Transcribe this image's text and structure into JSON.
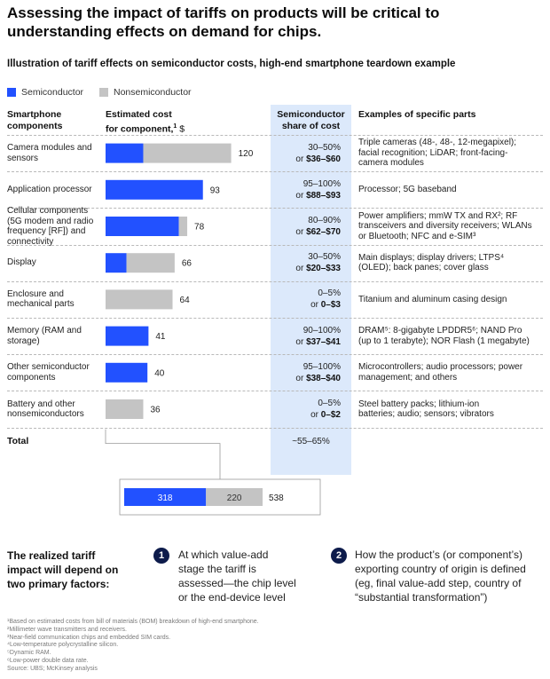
{
  "headline": "Assessing the impact of tariffs on products will be critical to understanding effects on demand for chips.",
  "subtitle": "Illustration of tariff effects on semiconductor costs, high-end smartphone teardown example",
  "colors": {
    "semiconductor": "#2251ff",
    "nonsemiconductor": "#c4c4c4",
    "share_bg": "#dce9fb",
    "badge": "#0d1b4b"
  },
  "legend": {
    "semiconductor": "Semiconductor",
    "nonsemiconductor": "Nonsemiconductor"
  },
  "columns": {
    "components": [
      "Smartphone",
      "components"
    ],
    "cost_prefix": "Estimated cost",
    "cost_line2": "for component,",
    "cost_sup": "1",
    "cost_unit": " $",
    "share": [
      "Semiconductor",
      "share of cost"
    ],
    "parts": "Examples of specific parts"
  },
  "chart_data": {
    "type": "bar",
    "stacked": true,
    "orientation": "horizontal",
    "categories": [
      "Camera modules and sensors",
      "Application processor",
      "Cellular components (5G modem and radio frequency [RF]) and connectivity",
      "Display",
      "Enclosure and mechanical parts",
      "Memory (RAM and storage)",
      "Other semiconductor components",
      "Battery and other nonsemiconductors"
    ],
    "series": [
      {
        "name": "Semiconductor",
        "values": [
          36,
          93,
          70,
          20,
          0,
          41,
          40,
          0
        ]
      },
      {
        "name": "Nonsemiconductor",
        "values": [
          84,
          0,
          8,
          46,
          64,
          0,
          0,
          36
        ]
      }
    ],
    "totals": [
      120,
      93,
      78,
      66,
      64,
      41,
      40,
      36
    ],
    "grand_total": {
      "semiconductor": 318,
      "nonsemiconductor": 220,
      "total": 538
    }
  },
  "rows": [
    {
      "label_lines": [
        "Camera modules and",
        "sensors"
      ],
      "share_pct": "30–50%",
      "share_or": "or ",
      "share_usd": "$36–$60",
      "parts_lines": [
        "Triple cameras (48-, 48-, 12-megapixel);",
        "facial recognition; LiDAR; front-facing-",
        "camera modules"
      ]
    },
    {
      "label_lines": [
        "Application processor"
      ],
      "share_pct": "95–100%",
      "share_or": "or ",
      "share_usd": "$88–$93",
      "parts_lines": [
        "Processor; 5G baseband"
      ]
    },
    {
      "label_lines": [
        "Cellular components",
        "(5G modem and radio",
        "frequency [RF]) and",
        "connectivity"
      ],
      "share_pct": "80–90%",
      "share_or": "or ",
      "share_usd": "$62–$70",
      "parts_lines": [
        "Power amplifiers; mmW TX and RX²; RF",
        "transceivers and diversity receivers; WLANs",
        "or Bluetooth; NFC and e-SIM³"
      ]
    },
    {
      "label_lines": [
        "Display"
      ],
      "share_pct": "30–50%",
      "share_or": "or ",
      "share_usd": "$20–$33",
      "parts_lines": [
        "Main displays; display drivers; LTPS⁴",
        "(OLED); back panes; cover glass"
      ]
    },
    {
      "label_lines": [
        "Enclosure and",
        "mechanical parts"
      ],
      "share_pct": "0–5%",
      "share_or": "or ",
      "share_usd": "0–$3",
      "parts_lines": [
        "Titanium and aluminum casing design"
      ]
    },
    {
      "label_lines": [
        "Memory (RAM and",
        "storage)"
      ],
      "share_pct": "90–100%",
      "share_or": "or ",
      "share_usd": "$37–$41",
      "parts_lines": [
        "DRAM⁵: 8-gigabyte LPDDR5⁶; NAND Pro",
        "(up to 1 terabyte); NOR Flash (1 megabyte)"
      ]
    },
    {
      "label_lines": [
        "Other semiconductor",
        "components"
      ],
      "share_pct": "95–100%",
      "share_or": "or ",
      "share_usd": "$38–$40",
      "parts_lines": [
        "Microcontrollers; audio processors; power",
        "management; and others"
      ]
    },
    {
      "label_lines": [
        "Battery and other",
        "nonsemiconductors"
      ],
      "share_pct": "0–5%",
      "share_or": "or ",
      "share_usd": "0–$2",
      "parts_lines": [
        "Steel battery packs; lithium-ion",
        "batteries; audio; sensors; vibrators"
      ]
    }
  ],
  "total_row": {
    "label": "Total",
    "share": "~55–65%"
  },
  "factors": {
    "intro": [
      "The realized tariff",
      "impact will depend on",
      "two primary factors:"
    ],
    "items": [
      {
        "number": "1",
        "lines": [
          "At which value-add",
          "stage the tariff is",
          "assessed—the chip level",
          "or the end-device level"
        ]
      },
      {
        "number": "2",
        "lines": [
          "How the product’s (or component’s)",
          "exporting country of origin is defined",
          "(eg, final value-add step, country of",
          "“substantial transformation”)"
        ]
      }
    ]
  },
  "footnotes": [
    "¹Based on estimated costs from bill of materials (BOM) breakdown of high-end smartphone.",
    "²Millimeter wave transmitters and receivers.",
    "³Near-field communication chips and embedded SIM cards.",
    "⁴Low-temperature polycrystalline silicon.",
    "⁵Dynamic RAM.",
    "⁶Low-power double data rate.",
    "Source: UBS; McKinsey analysis"
  ]
}
